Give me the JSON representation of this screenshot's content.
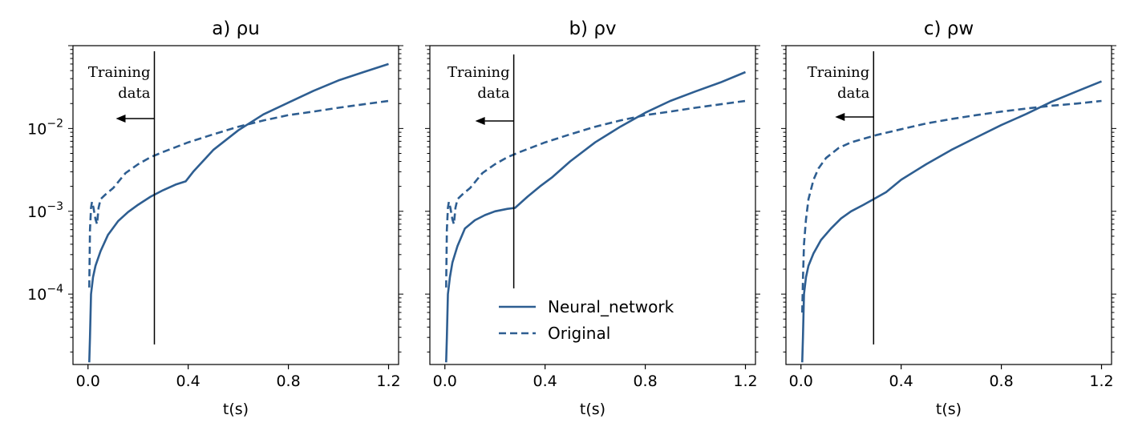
{
  "colors": {
    "series": "#2e5e91",
    "axis": "#000000"
  },
  "chart_data": [
    {
      "type": "line",
      "title": "a) ρu",
      "xlabel": "t(s)",
      "xlim": [
        -0.06,
        1.24
      ],
      "ylim_log10": [
        -4.85,
        -1.0
      ],
      "yscale": "log",
      "xticks": [
        0.0,
        0.4,
        0.8,
        1.2
      ],
      "xtick_labels": [
        "0.0",
        "0.4",
        "0.8",
        "1.2"
      ],
      "yticks": [
        0.0001,
        0.001,
        0.01
      ],
      "ytick_labels": [
        "10^-4",
        "10^-3",
        "10^-2"
      ],
      "annotation": {
        "line1": "Training",
        "line2": "data",
        "x": 0.265
      },
      "series": [
        {
          "name": "Neural_network",
          "style": "solid",
          "x": [
            0.005,
            0.008,
            0.012,
            0.02,
            0.03,
            0.05,
            0.08,
            0.12,
            0.16,
            0.2,
            0.25,
            0.3,
            0.35,
            0.39,
            0.42,
            0.5,
            0.6,
            0.7,
            0.8,
            0.9,
            1.0,
            1.1,
            1.2
          ],
          "y": [
            1.5e-05,
            3e-05,
            0.0001,
            0.00016,
            0.00022,
            0.00033,
            0.00052,
            0.00076,
            0.00098,
            0.0012,
            0.0015,
            0.0018,
            0.0021,
            0.0023,
            0.003,
            0.0055,
            0.0095,
            0.0148,
            0.0205,
            0.0285,
            0.038,
            0.048,
            0.06
          ]
        },
        {
          "name": "Original",
          "style": "dashed",
          "x": [
            0.005,
            0.008,
            0.012,
            0.016,
            0.022,
            0.03,
            0.036,
            0.042,
            0.05,
            0.07,
            0.1,
            0.15,
            0.2,
            0.25,
            0.3,
            0.4,
            0.5,
            0.6,
            0.7,
            0.8,
            0.9,
            1.0,
            1.1,
            1.2
          ],
          "y": [
            0.00012,
            0.0006,
            0.0011,
            0.0013,
            0.0011,
            0.0008,
            0.0007,
            0.0011,
            0.0014,
            0.0016,
            0.0019,
            0.0029,
            0.0037,
            0.0045,
            0.0052,
            0.0068,
            0.0085,
            0.0105,
            0.0125,
            0.0145,
            0.016,
            0.0178,
            0.0196,
            0.0215
          ]
        }
      ]
    },
    {
      "type": "line",
      "title": "b) ρv",
      "xlabel": "t(s)",
      "xlim": [
        -0.06,
        1.24
      ],
      "ylim_log10": [
        -4.85,
        -1.0
      ],
      "yscale": "log",
      "xticks": [
        0.0,
        0.4,
        0.8,
        1.2
      ],
      "xtick_labels": [
        "0.0",
        "0.4",
        "0.8",
        "1.2"
      ],
      "annotation": {
        "line1": "Training",
        "line2": "data",
        "x": 0.275
      },
      "legend": {
        "position": "lower-center",
        "entries": [
          "Neural_network",
          "Original"
        ]
      },
      "series": [
        {
          "name": "Neural_network",
          "style": "solid",
          "x": [
            0.005,
            0.008,
            0.012,
            0.02,
            0.03,
            0.05,
            0.08,
            0.12,
            0.16,
            0.2,
            0.25,
            0.28,
            0.33,
            0.38,
            0.43,
            0.5,
            0.6,
            0.7,
            0.8,
            0.9,
            1.0,
            1.1,
            1.2
          ],
          "y": [
            1.5e-05,
            3e-05,
            0.0001,
            0.00016,
            0.00024,
            0.00038,
            0.00062,
            0.00078,
            0.0009,
            0.001,
            0.00107,
            0.0011,
            0.0015,
            0.002,
            0.0026,
            0.004,
            0.0068,
            0.0105,
            0.0155,
            0.0215,
            0.028,
            0.036,
            0.048
          ]
        },
        {
          "name": "Original",
          "style": "dashed",
          "x": [
            0.005,
            0.008,
            0.012,
            0.016,
            0.022,
            0.03,
            0.036,
            0.042,
            0.05,
            0.07,
            0.1,
            0.15,
            0.2,
            0.25,
            0.3,
            0.4,
            0.5,
            0.6,
            0.7,
            0.8,
            0.9,
            1.0,
            1.1,
            1.2
          ],
          "y": [
            0.00012,
            0.0006,
            0.0011,
            0.0013,
            0.0011,
            0.0008,
            0.0007,
            0.0011,
            0.0014,
            0.0016,
            0.0019,
            0.0029,
            0.0037,
            0.0045,
            0.0052,
            0.0068,
            0.0085,
            0.0105,
            0.0125,
            0.0145,
            0.016,
            0.0178,
            0.0196,
            0.0215
          ]
        }
      ]
    },
    {
      "type": "line",
      "title": "c) ρw",
      "xlabel": "t(s)",
      "xlim": [
        -0.06,
        1.24
      ],
      "ylim_log10": [
        -4.85,
        -1.0
      ],
      "yscale": "log",
      "xticks": [
        0.0,
        0.4,
        0.8,
        1.2
      ],
      "xtick_labels": [
        "0.0",
        "0.4",
        "0.8",
        "1.2"
      ],
      "annotation": {
        "line1": "Training",
        "line2": "data",
        "x": 0.29
      },
      "series": [
        {
          "name": "Neural_network",
          "style": "solid",
          "x": [
            0.005,
            0.008,
            0.012,
            0.02,
            0.03,
            0.05,
            0.08,
            0.12,
            0.16,
            0.2,
            0.25,
            0.29,
            0.34,
            0.4,
            0.5,
            0.6,
            0.7,
            0.8,
            0.9,
            1.0,
            1.1,
            1.2
          ],
          "y": [
            1.5e-05,
            3e-05,
            0.0001,
            0.00016,
            0.00022,
            0.00031,
            0.00045,
            0.00062,
            0.00082,
            0.001,
            0.0012,
            0.0014,
            0.0017,
            0.0024,
            0.0037,
            0.0055,
            0.0078,
            0.011,
            0.015,
            0.021,
            0.028,
            0.037
          ]
        },
        {
          "name": "Original",
          "style": "dashed",
          "x": [
            0.005,
            0.008,
            0.012,
            0.02,
            0.03,
            0.05,
            0.07,
            0.1,
            0.15,
            0.2,
            0.3,
            0.4,
            0.5,
            0.6,
            0.7,
            0.8,
            0.9,
            1.0,
            1.1,
            1.2
          ],
          "y": [
            6e-05,
            0.00015,
            0.0004,
            0.0008,
            0.0014,
            0.0024,
            0.0033,
            0.0044,
            0.0058,
            0.0068,
            0.0083,
            0.0098,
            0.0115,
            0.013,
            0.0145,
            0.016,
            0.0174,
            0.0188,
            0.02,
            0.0215
          ]
        }
      ]
    }
  ]
}
